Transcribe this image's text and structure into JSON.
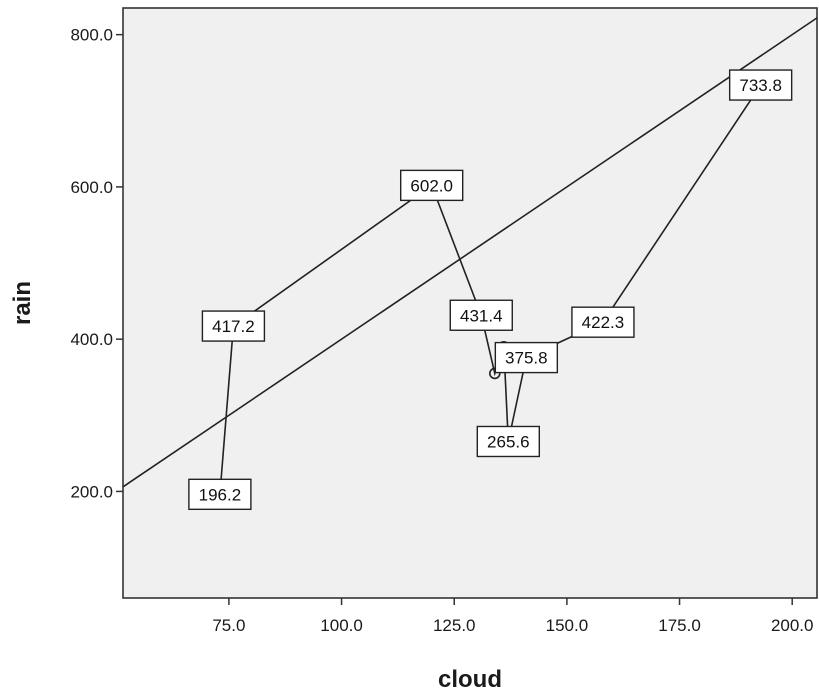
{
  "chart_data": {
    "type": "scatter",
    "title": "",
    "xlabel": "cloud",
    "ylabel": "rain",
    "xlim": [
      51.5,
      205.5
    ],
    "ylim": [
      60,
      835
    ],
    "x_ticks": [
      75,
      100,
      125,
      150,
      175,
      200
    ],
    "y_ticks": [
      200,
      400,
      600,
      800
    ],
    "x_tick_labels": [
      "75.0",
      "100.0",
      "125.0",
      "150.0",
      "175.0",
      "200.0"
    ],
    "y_tick_labels": [
      "200.0",
      "400.0",
      "600.0",
      "800.0"
    ],
    "grid": false,
    "reference_line": "y = 4x",
    "series": [
      {
        "points": [
          {
            "x": 73.0,
            "y": 196.2,
            "label": "196.2"
          },
          {
            "x": 76.0,
            "y": 417.2,
            "label": "417.2"
          },
          {
            "x": 120.0,
            "y": 602.0,
            "label": "602.0"
          },
          {
            "x": 131.0,
            "y": 431.4,
            "label": "431.4"
          },
          {
            "x": 134.0,
            "y": 355.0,
            "label": ""
          },
          {
            "x": 136.0,
            "y": 390.0,
            "label": ""
          },
          {
            "x": 137.0,
            "y": 265.6,
            "label": "265.6"
          },
          {
            "x": 141.0,
            "y": 375.8,
            "label": "375.8"
          },
          {
            "x": 158.0,
            "y": 422.3,
            "label": "422.3"
          },
          {
            "x": 193.0,
            "y": 733.8,
            "label": "733.8"
          }
        ]
      }
    ]
  }
}
